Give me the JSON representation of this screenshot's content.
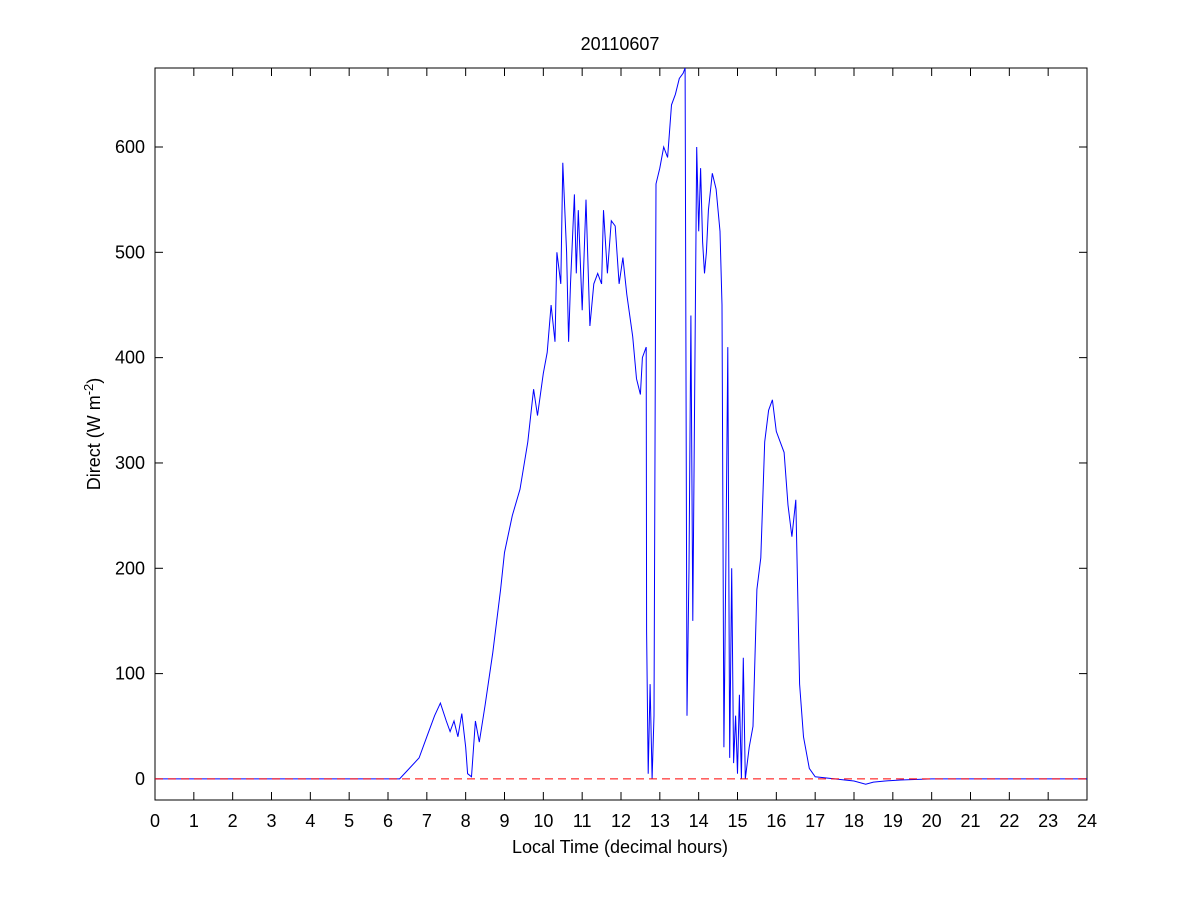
{
  "chart_data": {
    "type": "line",
    "title": "20110607",
    "xlabel": "Local Time (decimal hours)",
    "ylabel": {
      "prefix": "Direct (W m",
      "sup": "-2",
      "suffix": ")"
    },
    "xlim": [
      0,
      24
    ],
    "ylim": [
      -20,
      675
    ],
    "xticks": [
      0,
      1,
      2,
      3,
      4,
      5,
      6,
      7,
      8,
      9,
      10,
      11,
      12,
      13,
      14,
      15,
      16,
      17,
      18,
      19,
      20,
      21,
      22,
      23,
      24
    ],
    "yticks": [
      0,
      100,
      200,
      300,
      400,
      500,
      600
    ],
    "grid": false,
    "legend": "none",
    "series": [
      {
        "color": "#0000ff",
        "style": "solid",
        "points": [
          [
            0,
            0
          ],
          [
            6.3,
            0
          ],
          [
            6.5,
            8
          ],
          [
            6.8,
            20
          ],
          [
            7.0,
            40
          ],
          [
            7.2,
            60
          ],
          [
            7.35,
            72
          ],
          [
            7.5,
            55
          ],
          [
            7.6,
            45
          ],
          [
            7.7,
            55
          ],
          [
            7.8,
            40
          ],
          [
            7.9,
            62
          ],
          [
            8.0,
            30
          ],
          [
            8.05,
            5
          ],
          [
            8.15,
            2
          ],
          [
            8.25,
            55
          ],
          [
            8.35,
            35
          ],
          [
            8.5,
            70
          ],
          [
            8.7,
            120
          ],
          [
            8.9,
            180
          ],
          [
            9.0,
            215
          ],
          [
            9.2,
            250
          ],
          [
            9.4,
            275
          ],
          [
            9.6,
            320
          ],
          [
            9.75,
            370
          ],
          [
            9.85,
            345
          ],
          [
            10.0,
            385
          ],
          [
            10.1,
            405
          ],
          [
            10.2,
            450
          ],
          [
            10.3,
            415
          ],
          [
            10.35,
            500
          ],
          [
            10.45,
            470
          ],
          [
            10.5,
            585
          ],
          [
            10.6,
            500
          ],
          [
            10.65,
            415
          ],
          [
            10.7,
            470
          ],
          [
            10.8,
            555
          ],
          [
            10.85,
            480
          ],
          [
            10.9,
            540
          ],
          [
            11.0,
            445
          ],
          [
            11.1,
            550
          ],
          [
            11.2,
            430
          ],
          [
            11.3,
            470
          ],
          [
            11.4,
            480
          ],
          [
            11.5,
            470
          ],
          [
            11.55,
            540
          ],
          [
            11.65,
            480
          ],
          [
            11.75,
            530
          ],
          [
            11.85,
            525
          ],
          [
            11.95,
            470
          ],
          [
            12.05,
            495
          ],
          [
            12.15,
            460
          ],
          [
            12.3,
            420
          ],
          [
            12.4,
            380
          ],
          [
            12.5,
            365
          ],
          [
            12.55,
            400
          ],
          [
            12.65,
            410
          ],
          [
            12.66,
            140
          ],
          [
            12.7,
            5
          ],
          [
            12.75,
            90
          ],
          [
            12.8,
            0
          ],
          [
            12.85,
            60
          ],
          [
            12.9,
            565
          ],
          [
            13.0,
            580
          ],
          [
            13.1,
            600
          ],
          [
            13.2,
            590
          ],
          [
            13.3,
            640
          ],
          [
            13.4,
            650
          ],
          [
            13.5,
            665
          ],
          [
            13.6,
            670
          ],
          [
            13.65,
            675
          ],
          [
            13.7,
            60
          ],
          [
            13.75,
            200
          ],
          [
            13.8,
            440
          ],
          [
            13.85,
            150
          ],
          [
            13.95,
            600
          ],
          [
            14.0,
            520
          ],
          [
            14.05,
            580
          ],
          [
            14.1,
            510
          ],
          [
            14.15,
            480
          ],
          [
            14.2,
            500
          ],
          [
            14.25,
            540
          ],
          [
            14.35,
            575
          ],
          [
            14.45,
            560
          ],
          [
            14.55,
            520
          ],
          [
            14.6,
            450
          ],
          [
            14.65,
            30
          ],
          [
            14.7,
            200
          ],
          [
            14.75,
            410
          ],
          [
            14.8,
            20
          ],
          [
            14.85,
            200
          ],
          [
            14.9,
            15
          ],
          [
            14.95,
            60
          ],
          [
            15.0,
            5
          ],
          [
            15.05,
            80
          ],
          [
            15.1,
            0
          ],
          [
            15.15,
            115
          ],
          [
            15.2,
            0
          ],
          [
            15.3,
            30
          ],
          [
            15.4,
            50
          ],
          [
            15.5,
            180
          ],
          [
            15.6,
            210
          ],
          [
            15.7,
            320
          ],
          [
            15.8,
            350
          ],
          [
            15.9,
            360
          ],
          [
            16.0,
            330
          ],
          [
            16.1,
            320
          ],
          [
            16.2,
            310
          ],
          [
            16.3,
            260
          ],
          [
            16.4,
            230
          ],
          [
            16.5,
            265
          ],
          [
            16.6,
            90
          ],
          [
            16.7,
            40
          ],
          [
            16.85,
            10
          ],
          [
            17.0,
            2
          ],
          [
            17.5,
            0
          ],
          [
            18.0,
            -2
          ],
          [
            18.3,
            -5
          ],
          [
            18.5,
            -3
          ],
          [
            18.8,
            -2
          ],
          [
            19.2,
            -1
          ],
          [
            20,
            0
          ],
          [
            24,
            0
          ]
        ]
      },
      {
        "color": "#ff0000",
        "style": "dashed",
        "points": [
          [
            0,
            0
          ],
          [
            24,
            0
          ]
        ]
      }
    ]
  }
}
